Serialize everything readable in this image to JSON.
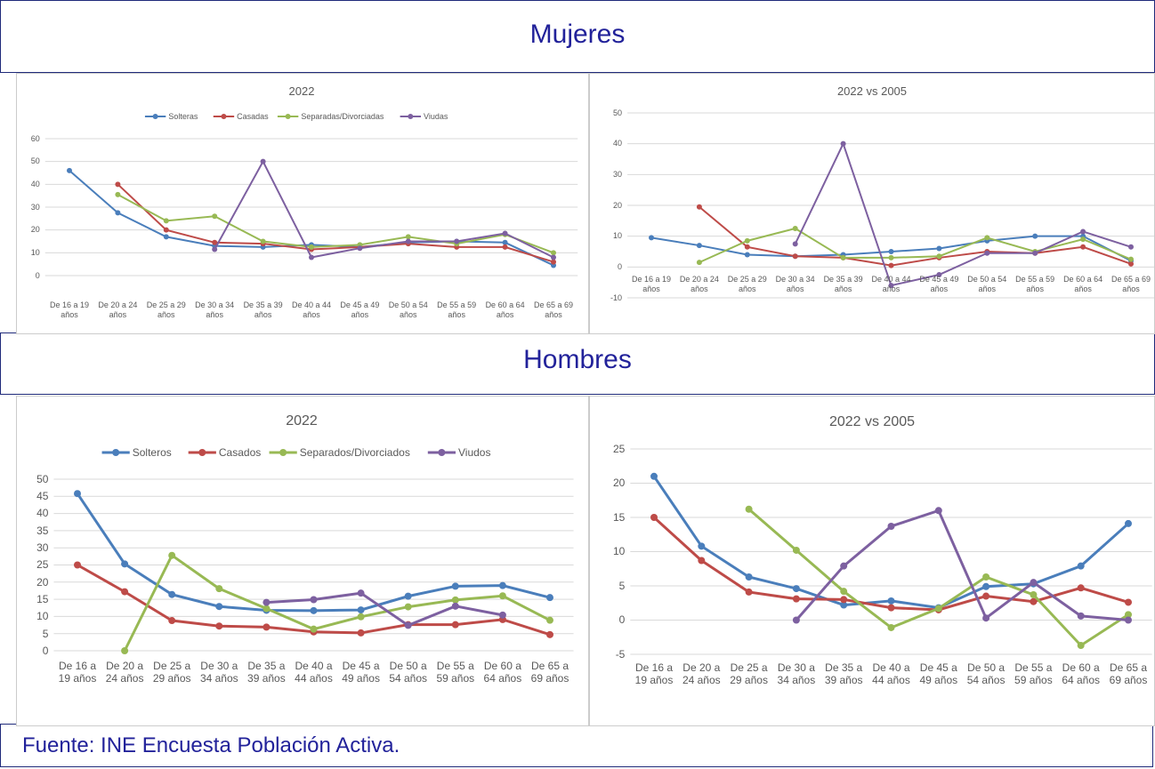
{
  "sections": [
    "Mujeres",
    "Hombres"
  ],
  "source": "Fuente: INE Encuesta Población Activa.",
  "chart_data": [
    {
      "type": "line",
      "title": "2022",
      "legend": "top",
      "grid": true,
      "categories": [
        "De 16 a 19 años",
        "De 20 a 24 años",
        "De 25 a 29 años",
        "De 30 a 34 años",
        "De 35 a 39 años",
        "De 40 a 44 años",
        "De 45 a 49 años",
        "De 50 a 54 años",
        "De 55 a 59 años",
        "De 60 a 64 años",
        "De 65 a 69 años"
      ],
      "ylim": [
        0,
        60
      ],
      "yticks": [
        0,
        10,
        20,
        30,
        40,
        50,
        60
      ],
      "series": [
        {
          "name": "Solteras",
          "color": "#4a7ebb",
          "values": [
            46,
            27.5,
            17,
            13,
            12.5,
            13.5,
            12.5,
            14.5,
            15,
            14.5,
            4.5
          ]
        },
        {
          "name": "Casadas",
          "color": "#be4b48",
          "values": [
            null,
            40,
            20,
            14.5,
            14,
            11.5,
            12.5,
            14,
            12.5,
            12.5,
            6
          ]
        },
        {
          "name": "Separadas/Divorciadas",
          "color": "#98b954",
          "values": [
            null,
            35.5,
            24,
            26,
            15,
            12.5,
            13.5,
            17,
            14,
            18,
            10
          ]
        },
        {
          "name": "Viudas",
          "color": "#7d60a0",
          "values": [
            null,
            null,
            null,
            11.5,
            50,
            8,
            12,
            15,
            15,
            18.5,
            8
          ]
        }
      ]
    },
    {
      "type": "line",
      "title": "2022 vs 2005",
      "grid": true,
      "categories": [
        "De 16 a 19 años",
        "De 20 a 24 años",
        "De 25 a 29 años",
        "De 30 a 34 años",
        "De 35 a 39 años",
        "De 40 a 44 años",
        "De 45 a 49 años",
        "De 50 a 54 años",
        "De 55 a 59 años",
        "De 60 a 64 años",
        "De 65 a 69 años"
      ],
      "ylim": [
        -10,
        50
      ],
      "yticks": [
        -10,
        0,
        10,
        20,
        30,
        40,
        50
      ],
      "series": [
        {
          "color": "#4a7ebb",
          "values": [
            9.5,
            7,
            4,
            3.5,
            4,
            5,
            6,
            8.5,
            10,
            10,
            2
          ]
        },
        {
          "color": "#be4b48",
          "values": [
            null,
            19.5,
            6.5,
            3.5,
            3,
            0.5,
            3,
            5,
            4.5,
            6.5,
            1
          ]
        },
        {
          "color": "#98b954",
          "values": [
            null,
            1.5,
            8.5,
            12.5,
            3,
            3,
            3.5,
            9.5,
            5,
            9,
            2.5
          ]
        },
        {
          "color": "#7d60a0",
          "values": [
            null,
            null,
            null,
            7.5,
            40,
            -6,
            -2.5,
            4.5,
            4.5,
            11.5,
            6.5
          ]
        }
      ]
    },
    {
      "type": "line",
      "title": "2022",
      "legend": "top",
      "grid": true,
      "categories": [
        "De 16 a 19 años",
        "De 20 a 24 años",
        "De 25 a 29 años",
        "De 30 a 34 años",
        "De 35 a 39 años",
        "De 40 a 44 años",
        "De 45 a 49 años",
        "De 50 a 54 años",
        "De 55 a 59 años",
        "De 60 a 64 años",
        "De 65 a 69 años"
      ],
      "ylim": [
        0,
        50
      ],
      "yticks": [
        0,
        5,
        10,
        15,
        20,
        25,
        30,
        35,
        40,
        45,
        50
      ],
      "series": [
        {
          "name": "Solteros",
          "color": "#4a7ebb",
          "values": [
            45.8,
            25.3,
            16.4,
            12.9,
            11.8,
            11.7,
            11.9,
            15.9,
            18.8,
            19,
            15.5
          ]
        },
        {
          "name": "Casados",
          "color": "#be4b48",
          "values": [
            25,
            17.2,
            8.8,
            7.2,
            6.9,
            5.5,
            5.2,
            7.6,
            7.6,
            9.1,
            4.7
          ]
        },
        {
          "name": "Separados/Divorciados",
          "color": "#98b954",
          "values": [
            null,
            0,
            27.8,
            18.1,
            12.3,
            6.3,
            9.9,
            12.8,
            14.8,
            16,
            8.9
          ]
        },
        {
          "name": "Viudos",
          "color": "#7d60a0",
          "values": [
            null,
            null,
            null,
            null,
            14.1,
            14.9,
            16.8,
            7.4,
            13,
            10.4,
            null
          ]
        }
      ]
    },
    {
      "type": "line",
      "title": "2022 vs 2005",
      "grid": true,
      "categories": [
        "De 16 a 19 años",
        "De 20 a 24 años",
        "De 25 a 29 años",
        "De 30 a 34 años",
        "De 35 a 39 años",
        "De 40 a 44 años",
        "De 45 a 49 años",
        "De 50 a 54 años",
        "De 55 a 59 años",
        "De 60 a 64 años",
        "De 65 a 69 años"
      ],
      "ylim": [
        -5,
        25
      ],
      "yticks": [
        -5,
        0,
        5,
        10,
        15,
        20,
        25
      ],
      "series": [
        {
          "color": "#4a7ebb",
          "values": [
            21,
            10.8,
            6.3,
            4.6,
            2.2,
            2.8,
            1.8,
            4.9,
            5.3,
            7.9,
            14.1
          ]
        },
        {
          "color": "#be4b48",
          "values": [
            15,
            8.7,
            4.1,
            3.1,
            3,
            1.8,
            1.5,
            3.5,
            2.7,
            4.7,
            2.6
          ]
        },
        {
          "color": "#98b954",
          "values": [
            null,
            null,
            16.2,
            10.2,
            4.2,
            -1.1,
            1.7,
            6.3,
            3.7,
            -3.7,
            0.8
          ]
        },
        {
          "color": "#7d60a0",
          "values": [
            null,
            null,
            null,
            0,
            7.9,
            13.7,
            16,
            0.3,
            5.5,
            0.6,
            0
          ]
        }
      ]
    }
  ]
}
